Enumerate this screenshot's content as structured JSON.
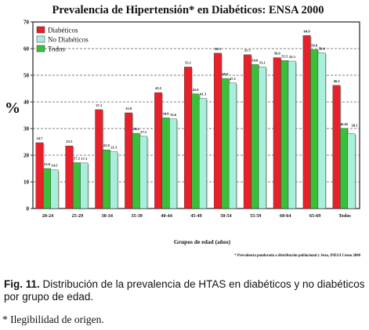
{
  "chart_data": {
    "type": "bar",
    "title": "Prevalencia de Hipertensión* en Diabéticos: ENSA 2000",
    "xlabel": "Grupos de edad (años)",
    "ylabel": "%",
    "ylim": [
      0,
      70
    ],
    "yticks": [
      0,
      10,
      20,
      30,
      40,
      50,
      60,
      70
    ],
    "grid": true,
    "legend_position": "top-left",
    "categories": [
      "20-24",
      "25-29",
      "30-34",
      "35-39",
      "40-44",
      "45-49",
      "50-54",
      "55-59",
      "60-64",
      "65-69",
      "Todos"
    ],
    "series": [
      {
        "name": "Diabéticos",
        "color": "#e8202a",
        "values": [
          24.7,
          23.5,
          37.1,
          35.9,
          43.5,
          53.1,
          58.3,
          57.7,
          56.6,
          64.9,
          46.2
        ],
        "labels": [
          "24.7",
          "23.5",
          "37.1",
          "35.9",
          "43.5",
          "53.1",
          "58.3",
          "57.7",
          "56.6",
          "64.9",
          "46.2"
        ]
      },
      {
        "name": "No Diabéticos",
        "color": "#a8f0dc",
        "values": [
          14.5,
          17.1,
          21.3,
          27.1,
          33.6,
          41.3,
          47.1,
          53.1,
          55.3,
          58.4,
          28.1
        ],
        "labels": [
          "14.5",
          "17.1",
          "21.3",
          "27.1",
          "33.6",
          "41.3",
          "47.1",
          "53.1",
          "55.3",
          "58.4",
          "28.1"
        ]
      },
      {
        "name": "Todos",
        "color": "#3bbf3b",
        "values": [
          15.0,
          17.2,
          22.0,
          28.2,
          34.0,
          43.0,
          48.8,
          54.0,
          55.5,
          59.6,
          30.05
        ],
        "labels": [
          "15.0",
          "17.2",
          "22.0",
          "28.2",
          "34.0",
          "43.0",
          "48.8",
          "54.0",
          "55.5",
          "59.6",
          "30.05"
        ]
      }
    ],
    "footnote": "* Prevalencia ponderada a distribución poblacional y Sexo, INEGI Censo 2000"
  },
  "caption": {
    "label": "Fig. 11.",
    "text": " Distribución de la prevalencia de HTAS en diabéticos y no diabéticos por grupo de edad."
  },
  "footnote": "* Ilegibilidad de origen."
}
